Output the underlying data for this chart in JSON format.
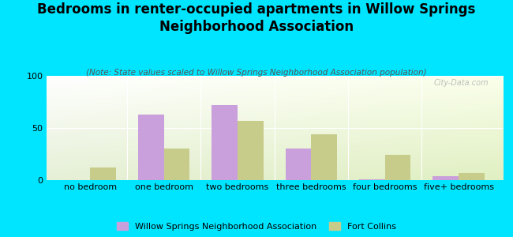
{
  "title": "Bedrooms in renter-occupied apartments in Willow Springs\nNeighborhood Association",
  "subtitle": "(Note: State values scaled to Willow Springs Neighborhood Association population)",
  "categories": [
    "no bedroom",
    "one bedroom",
    "two bedrooms",
    "three bedrooms",
    "four bedrooms",
    "five+ bedrooms"
  ],
  "willow_values": [
    0,
    63,
    72,
    30,
    1,
    4
  ],
  "fortcollins_values": [
    12,
    30,
    57,
    44,
    24,
    7
  ],
  "willow_color": "#c9a0dc",
  "fortcollins_color": "#c8cc8a",
  "background_outer": "#00e5ff",
  "ylim": [
    0,
    100
  ],
  "yticks": [
    0,
    50,
    100
  ],
  "bar_width": 0.35,
  "legend_willow": "Willow Springs Neighborhood Association",
  "legend_fortcollins": "Fort Collins",
  "title_fontsize": 12,
  "subtitle_fontsize": 7.5,
  "axis_fontsize": 8,
  "watermark": "City-Data.com"
}
